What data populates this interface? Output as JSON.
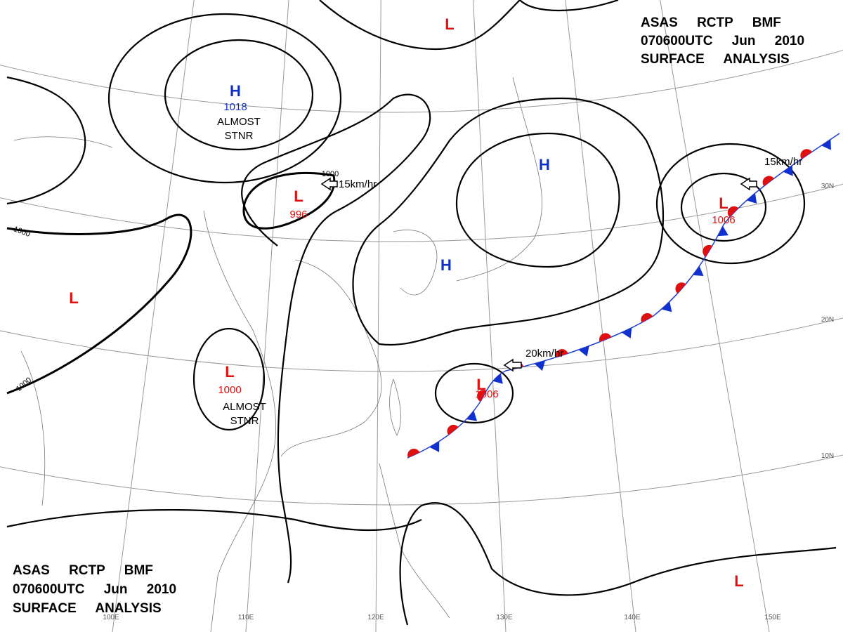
{
  "header_top": {
    "lines": [
      "ASAS RCTP BMF",
      "070600UTC Jun 2010",
      "SURFACE ANALYSIS"
    ]
  },
  "header_bottom": {
    "lines": [
      "ASAS RCTP BMF",
      "070600UTC Jun 2010",
      "SURFACE ANALYSIS"
    ]
  },
  "centers": [
    {
      "symbol": "H",
      "value": 1018,
      "color": "#1030c0"
    },
    {
      "symbol": "L",
      "value": 996,
      "color": "#e01010"
    },
    {
      "symbol": "L",
      "value": 1000,
      "color": "#e01010"
    },
    {
      "symbol": "L",
      "value": 1006,
      "color": "#e01010"
    },
    {
      "symbol": "L",
      "value": 1006,
      "color": "#e01010"
    },
    {
      "symbol": "H",
      "color": "#1030c0"
    },
    {
      "symbol": "H",
      "color": "#1030c0"
    },
    {
      "symbol": "L",
      "color": "#e01010"
    },
    {
      "symbol": "L",
      "color": "#e01010"
    },
    {
      "symbol": "L",
      "color": "#e01010"
    }
  ],
  "notes": [
    [
      "ALMOST",
      "STNR"
    ],
    [
      "ALMOST",
      "STNR"
    ]
  ],
  "motions": [
    "15km/hr",
    "15km/hr",
    "20km/hr"
  ],
  "isobar_labels": [
    "1000",
    "1000",
    "1000"
  ],
  "latitudes": [
    "30N",
    "20N",
    "10N"
  ],
  "longitudes": [
    "100E",
    "110E",
    "120E",
    "130E",
    "140E",
    "150E"
  ]
}
